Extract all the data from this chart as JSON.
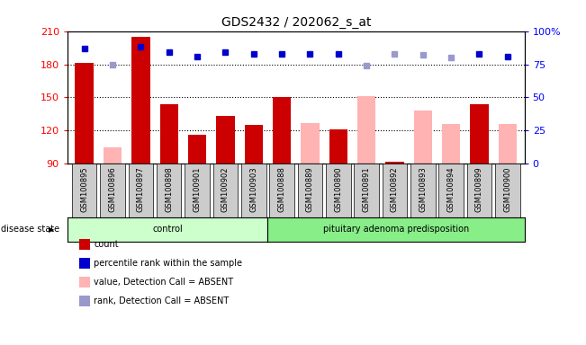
{
  "title": "GDS2432 / 202062_s_at",
  "samples": [
    "GSM100895",
    "GSM100896",
    "GSM100897",
    "GSM100898",
    "GSM100901",
    "GSM100902",
    "GSM100903",
    "GSM100888",
    "GSM100889",
    "GSM100890",
    "GSM100891",
    "GSM100892",
    "GSM100893",
    "GSM100894",
    "GSM100899",
    "GSM100900"
  ],
  "n_control": 7,
  "count_values": [
    181,
    null,
    205,
    144,
    116,
    133,
    125,
    150,
    null,
    121,
    null,
    92,
    null,
    null,
    144,
    null
  ],
  "count_absent": [
    null,
    105,
    null,
    null,
    null,
    null,
    null,
    null,
    127,
    null,
    151,
    null,
    138,
    126,
    null,
    126
  ],
  "percentile_values": [
    87,
    null,
    88,
    84,
    81,
    84,
    83,
    83,
    83,
    83,
    null,
    null,
    null,
    null,
    83,
    81
  ],
  "percentile_absent": [
    null,
    75,
    null,
    null,
    null,
    null,
    null,
    null,
    null,
    null,
    74,
    83,
    82,
    80,
    null,
    null
  ],
  "ylim_left": [
    90,
    210
  ],
  "ylim_right": [
    0,
    100
  ],
  "yticks_left": [
    90,
    120,
    150,
    180,
    210
  ],
  "yticks_right": [
    0,
    25,
    50,
    75,
    100
  ],
  "ytick_labels_right": [
    "0",
    "25",
    "50",
    "75",
    "100%"
  ],
  "color_count": "#cc0000",
  "color_count_absent": "#ffb3b3",
  "color_percentile": "#0000cc",
  "color_percentile_absent": "#9999cc",
  "color_control_bg": "#ccffcc",
  "color_adenoma_bg": "#88ee88",
  "color_xticklabel_bg": "#cccccc",
  "dotted_line_values": [
    120,
    150,
    180
  ],
  "control_label": "control",
  "adenoma_label": "pituitary adenoma predisposition",
  "disease_state_label": "disease state",
  "legend_items": [
    {
      "label": "count",
      "color": "#cc0000"
    },
    {
      "label": "percentile rank within the sample",
      "color": "#0000cc"
    },
    {
      "label": "value, Detection Call = ABSENT",
      "color": "#ffb3b3"
    },
    {
      "label": "rank, Detection Call = ABSENT",
      "color": "#9999cc"
    }
  ]
}
